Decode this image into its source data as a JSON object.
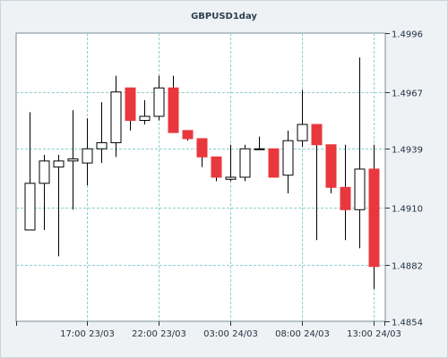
{
  "chart_data": {
    "type": "candlestick",
    "title": "GBPUSD1day",
    "ylim": [
      1.4854,
      1.4996
    ],
    "y_ticks": [
      "1.4996",
      "1.4967",
      "1.4939",
      "1.4910",
      "1.4882",
      "1.4854"
    ],
    "x_ticks": [
      "17:00 23/03",
      "22:00 23/03",
      "03:00 24/03",
      "08:00 24/03",
      "13:00 24/03"
    ],
    "grid": true,
    "colors": {
      "up": "#ffffff",
      "down": "#e8383d",
      "wick": "#000000",
      "grid": "#8fcfcf"
    },
    "series": [
      {
        "open": 1.4899,
        "high": 1.4957,
        "low": 1.4899,
        "close": 1.4922
      },
      {
        "open": 1.4922,
        "high": 1.4936,
        "low": 1.4899,
        "close": 1.4933
      },
      {
        "open": 1.493,
        "high": 1.4936,
        "low": 1.4886,
        "close": 1.4933
      },
      {
        "open": 1.4933,
        "high": 1.4958,
        "low": 1.4909,
        "close": 1.4934
      },
      {
        "open": 1.4932,
        "high": 1.4954,
        "low": 1.4921,
        "close": 1.4939
      },
      {
        "open": 1.4939,
        "high": 1.4962,
        "low": 1.4932,
        "close": 1.4942
      },
      {
        "open": 1.4942,
        "high": 1.4975,
        "low": 1.4935,
        "close": 1.4967
      },
      {
        "open": 1.4969,
        "high": 1.4969,
        "low": 1.4948,
        "close": 1.4953
      },
      {
        "open": 1.4953,
        "high": 1.4963,
        "low": 1.4951,
        "close": 1.4955
      },
      {
        "open": 1.4955,
        "high": 1.4975,
        "low": 1.4953,
        "close": 1.4969
      },
      {
        "open": 1.4969,
        "high": 1.4975,
        "low": 1.4947,
        "close": 1.4947
      },
      {
        "open": 1.4948,
        "high": 1.4948,
        "low": 1.4943,
        "close": 1.4944
      },
      {
        "open": 1.4944,
        "high": 1.4944,
        "low": 1.493,
        "close": 1.4935
      },
      {
        "open": 1.4935,
        "high": 1.4935,
        "low": 1.4923,
        "close": 1.4925
      },
      {
        "open": 1.4924,
        "high": 1.4941,
        "low": 1.4923,
        "close": 1.4925
      },
      {
        "open": 1.4925,
        "high": 1.4941,
        "low": 1.4923,
        "close": 1.4939
      },
      {
        "open": 1.4939,
        "high": 1.4945,
        "low": 1.4939,
        "close": 1.4939
      },
      {
        "open": 1.4939,
        "high": 1.4939,
        "low": 1.4925,
        "close": 1.4925
      },
      {
        "open": 1.4926,
        "high": 1.4948,
        "low": 1.4917,
        "close": 1.4943
      },
      {
        "open": 1.4943,
        "high": 1.4968,
        "low": 1.494,
        "close": 1.4951
      },
      {
        "open": 1.4951,
        "high": 1.4951,
        "low": 1.4894,
        "close": 1.4941
      },
      {
        "open": 1.4941,
        "high": 1.4941,
        "low": 1.4917,
        "close": 1.492
      },
      {
        "open": 1.492,
        "high": 1.4941,
        "low": 1.4894,
        "close": 1.4909
      },
      {
        "open": 1.4909,
        "high": 1.4984,
        "low": 1.489,
        "close": 1.4929
      },
      {
        "open": 1.4929,
        "high": 1.4941,
        "low": 1.487,
        "close": 1.4881
      }
    ]
  }
}
